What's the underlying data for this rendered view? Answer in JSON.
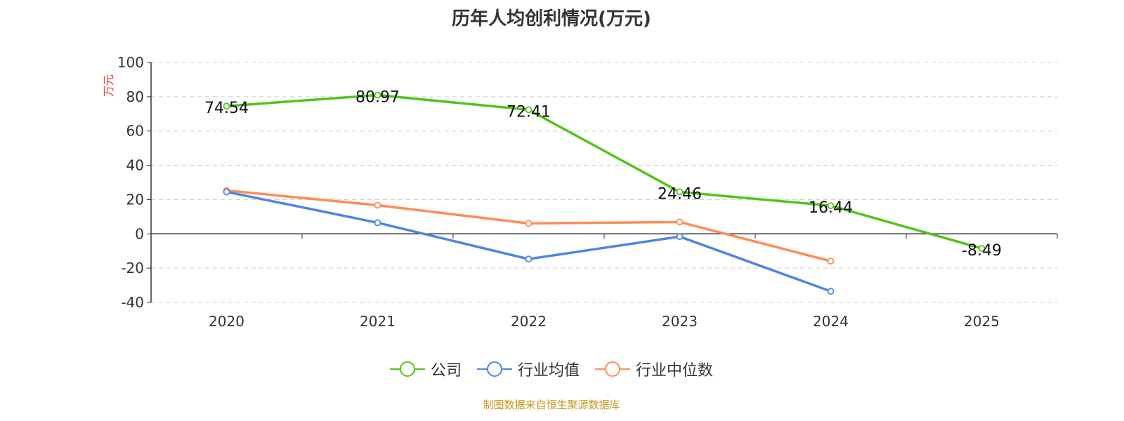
{
  "chart_data": {
    "type": "line",
    "title": "历年人均创利情况(万元)",
    "ylabel": "万元",
    "categories": [
      "2020",
      "2021",
      "2022",
      "2023",
      "2024",
      "2025"
    ],
    "ylim": [
      -40,
      100
    ],
    "yticks": [
      -40,
      -20,
      0,
      20,
      40,
      60,
      80,
      100
    ],
    "grid": true,
    "legend_position": "bottom",
    "series": [
      {
        "name": "公司",
        "color": "#52c41a",
        "values": [
          74.54,
          80.97,
          72.41,
          24.46,
          16.44,
          -8.49
        ],
        "labels": [
          "74.54",
          "80.97",
          "72.41",
          "24.46",
          "16.44",
          "-8.49"
        ]
      },
      {
        "name": "行业均值",
        "color": "#4e85e4",
        "values": [
          24.5,
          6.5,
          -14.7,
          -1.6,
          -33.5,
          null
        ]
      },
      {
        "name": "行业中位数",
        "color": "#ff8c55",
        "values": [
          25.3,
          16.7,
          6.1,
          6.9,
          -15.9,
          null
        ]
      }
    ]
  },
  "footer": {
    "source": "制图数据来自恒生聚源数据库"
  }
}
